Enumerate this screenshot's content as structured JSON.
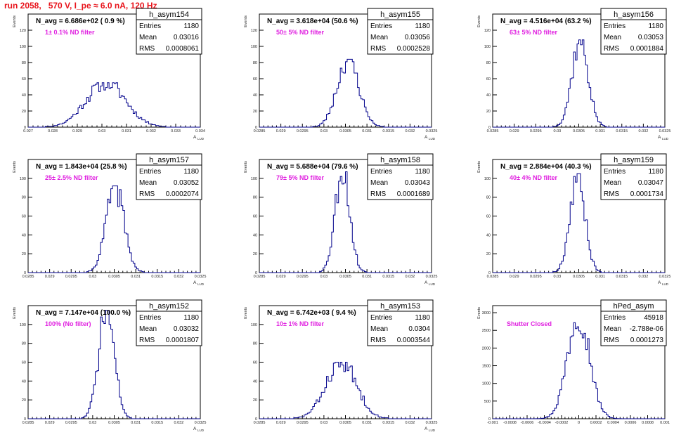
{
  "header": {
    "run_title": "run 2058,   570 V, I_pe ≈ 6.0 nA, 120 Hz"
  },
  "colors": {
    "title": "#e8141c",
    "histogram_line": "#00008b",
    "filter_label": "#e020e0",
    "axis": "#000000"
  },
  "chart_data": [
    {
      "type": "histogram",
      "name": "h_asym154",
      "navg_label": "N_avg = 6.686e+02 ( 0.9 %)",
      "filter_label": "1± 0.1% ND filter",
      "stats": [
        [
          "Entries",
          "1180"
        ],
        [
          "Mean",
          "0.03016"
        ],
        [
          "RMS",
          "0.0008061"
        ]
      ],
      "xlim": [
        0.027,
        0.034
      ],
      "xticks": [
        "0.027",
        "0.028",
        "0.029",
        "0.03",
        "0.031",
        "0.032",
        "0.033",
        "0.034"
      ],
      "ylim": [
        0,
        140
      ],
      "yticks": [
        "0",
        "20",
        "40",
        "60",
        "80",
        "100",
        "120"
      ],
      "ylabel": "Events",
      "xlabel": "A",
      "mean": 0.03016,
      "rms": 0.0008061,
      "peak": 55,
      "nbins": 100,
      "seed": 11
    },
    {
      "type": "histogram",
      "name": "h_asym155",
      "navg_label": "N_avg = 3.618e+04 (50.6 %)",
      "filter_label": "50± 5% ND filter",
      "stats": [
        [
          "Entries",
          "1180"
        ],
        [
          "Mean",
          "0.03056"
        ],
        [
          "RMS",
          "0.0002528"
        ]
      ],
      "xlim": [
        0.0285,
        0.0325
      ],
      "xticks": [
        "0.0285",
        "0.029",
        "0.0295",
        "0.03",
        "0.0305",
        "0.031",
        "0.0315",
        "0.032",
        "0.0325"
      ],
      "ylim": [
        0,
        140
      ],
      "yticks": [
        "0",
        "20",
        "40",
        "60",
        "80",
        "100",
        "120"
      ],
      "ylabel": "Events",
      "xlabel": "A",
      "mean": 0.03056,
      "rms": 0.0002528,
      "peak": 84,
      "nbins": 100,
      "seed": 23
    },
    {
      "type": "histogram",
      "name": "h_asym156",
      "navg_label": "N_avg = 4.516e+04 (63.2 %)",
      "filter_label": "63± 5% ND filter",
      "stats": [
        [
          "Entries",
          "1180"
        ],
        [
          "Mean",
          "0.03053"
        ],
        [
          "RMS",
          "0.0001884"
        ]
      ],
      "xlim": [
        0.0285,
        0.0325
      ],
      "xticks": [
        "0.0285",
        "0.029",
        "0.0295",
        "0.03",
        "0.0305",
        "0.031",
        "0.0315",
        "0.032",
        "0.0325"
      ],
      "ylim": [
        0,
        140
      ],
      "yticks": [
        "0",
        "20",
        "40",
        "60",
        "80",
        "100",
        "120"
      ],
      "ylabel": "Events",
      "xlabel": "A",
      "mean": 0.03053,
      "rms": 0.0001884,
      "peak": 108,
      "nbins": 100,
      "seed": 37
    },
    {
      "type": "histogram",
      "name": "h_asym157",
      "navg_label": "N_avg = 1.843e+04 (25.8 %)",
      "filter_label": "25± 2.5% ND filter",
      "stats": [
        [
          "Entries",
          "1180"
        ],
        [
          "Mean",
          "0.03052"
        ],
        [
          "RMS",
          "0.0002074"
        ]
      ],
      "xlim": [
        0.0285,
        0.0325
      ],
      "xticks": [
        "0.0285",
        "0.029",
        "0.0295",
        "0.03",
        "0.0305",
        "0.031",
        "0.0315",
        "0.032",
        "0.0325"
      ],
      "ylim": [
        0,
        120
      ],
      "yticks": [
        "0",
        "20",
        "40",
        "60",
        "80",
        "100"
      ],
      "ylabel": "Events",
      "xlabel": "A",
      "mean": 0.03052,
      "rms": 0.0002074,
      "peak": 92,
      "nbins": 100,
      "seed": 41
    },
    {
      "type": "histogram",
      "name": "h_asym158",
      "navg_label": "N_avg = 5.688e+04 (79.6 %)",
      "filter_label": "79± 5% ND filter",
      "stats": [
        [
          "Entries",
          "1180"
        ],
        [
          "Mean",
          "0.03043"
        ],
        [
          "RMS",
          "0.0001689"
        ]
      ],
      "xlim": [
        0.0285,
        0.0325
      ],
      "xticks": [
        "0.0285",
        "0.029",
        "0.0295",
        "0.03",
        "0.0305",
        "0.031",
        "0.0315",
        "0.032",
        "0.0325"
      ],
      "ylim": [
        0,
        120
      ],
      "yticks": [
        "0",
        "20",
        "40",
        "60",
        "80",
        "100"
      ],
      "ylabel": "Events",
      "xlabel": "A",
      "mean": 0.03043,
      "rms": 0.0001689,
      "peak": 110,
      "nbins": 100,
      "seed": 53
    },
    {
      "type": "histogram",
      "name": "h_asym159",
      "navg_label": "N_avg = 2.884e+04 (40.3 %)",
      "filter_label": "40± 4% ND filter",
      "stats": [
        [
          "Entries",
          "1180"
        ],
        [
          "Mean",
          "0.03047"
        ],
        [
          "RMS",
          "0.0001734"
        ]
      ],
      "xlim": [
        0.0285,
        0.0325
      ],
      "xticks": [
        "0.0285",
        "0.029",
        "0.0295",
        "0.03",
        "0.0305",
        "0.031",
        "0.0315",
        "0.032",
        "0.0325"
      ],
      "ylim": [
        0,
        120
      ],
      "yticks": [
        "0",
        "20",
        "40",
        "60",
        "80",
        "100"
      ],
      "ylabel": "Events",
      "xlabel": "A",
      "mean": 0.03047,
      "rms": 0.0001734,
      "peak": 105,
      "nbins": 100,
      "seed": 67
    },
    {
      "type": "histogram",
      "name": "h_asym152",
      "navg_label": "N_avg = 7.147e+04 (100.0 %)",
      "filter_label": "100% (No filter)",
      "stats": [
        [
          "Entries",
          "1180"
        ],
        [
          "Mean",
          "0.03032"
        ],
        [
          "RMS",
          "0.0001807"
        ]
      ],
      "xlim": [
        0.0285,
        0.0325
      ],
      "xticks": [
        "0.0285",
        "0.029",
        "0.0295",
        "0.03",
        "0.0305",
        "0.031",
        "0.0315",
        "0.032",
        "0.0325"
      ],
      "ylim": [
        0,
        120
      ],
      "yticks": [
        "0",
        "20",
        "40",
        "60",
        "80",
        "100"
      ],
      "ylabel": "Events",
      "xlabel": "A",
      "mean": 0.03032,
      "rms": 0.0001807,
      "peak": 115,
      "nbins": 100,
      "seed": 71
    },
    {
      "type": "histogram",
      "name": "h_asym153",
      "navg_label": "N_avg = 6.742e+03 ( 9.4 %)",
      "filter_label": "10± 1% ND filter",
      "stats": [
        [
          "Entries",
          "1180"
        ],
        [
          "Mean",
          "0.0304"
        ],
        [
          "RMS",
          "0.0003544"
        ]
      ],
      "xlim": [
        0.0285,
        0.0325
      ],
      "xticks": [
        "0.0285",
        "0.029",
        "0.0295",
        "0.03",
        "0.0305",
        "0.031",
        "0.0315",
        "0.032",
        "0.0325"
      ],
      "ylim": [
        0,
        120
      ],
      "yticks": [
        "0",
        "20",
        "40",
        "60",
        "80",
        "100"
      ],
      "ylabel": "Events",
      "xlabel": "A",
      "mean": 0.0304,
      "rms": 0.0003544,
      "peak": 60,
      "nbins": 100,
      "seed": 83
    },
    {
      "type": "histogram",
      "name": "hPed_asym",
      "navg_label": "",
      "filter_label": "Shutter Closed",
      "stats": [
        [
          "Entries",
          "45918"
        ],
        [
          "Mean",
          "-2.788e-06"
        ],
        [
          "RMS",
          "0.0001273"
        ]
      ],
      "xlim": [
        -0.001,
        0.001
      ],
      "xticks": [
        "-0.001",
        "-0.0008",
        "-0.0006",
        "-0.0004",
        "-0.0002",
        "0",
        "0.0002",
        "0.0004",
        "0.0006",
        "0.0008",
        "0.001"
      ],
      "ylim": [
        0,
        3200
      ],
      "yticks": [
        "0",
        "500",
        "1000",
        "1500",
        "2000",
        "2500",
        "3000"
      ],
      "ylabel": "Events",
      "xlabel": "",
      "mean": -2.788e-06,
      "rms": 0.0001273,
      "peak": 3020,
      "nbins": 100,
      "seed": 97
    }
  ]
}
